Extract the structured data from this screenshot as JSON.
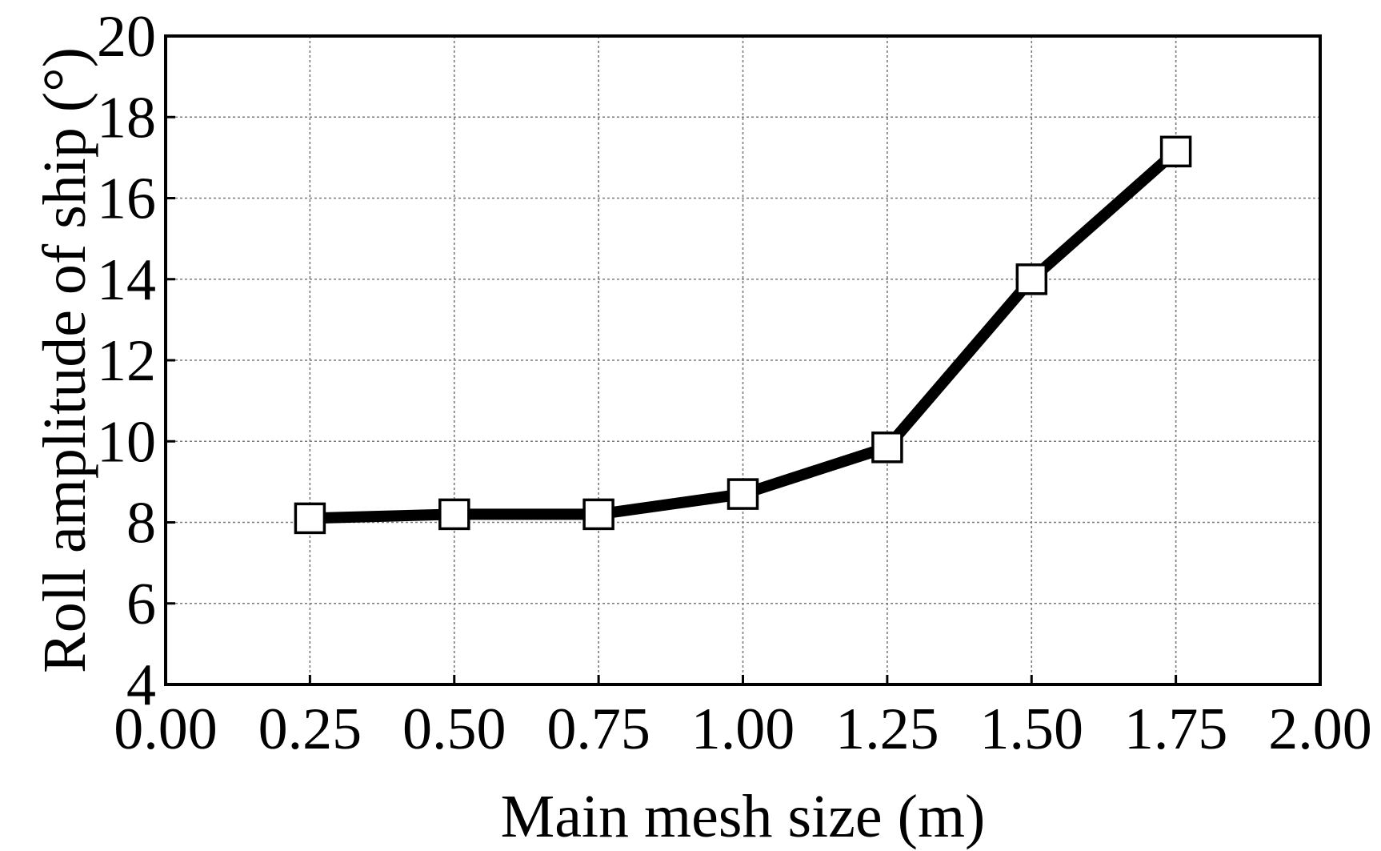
{
  "chart_data": {
    "type": "line",
    "title": "",
    "xlabel": "Main mesh size (m)",
    "ylabel": "Roll amplitude of ship (°)",
    "xlim": [
      0.0,
      2.0
    ],
    "ylim": [
      4,
      20
    ],
    "x_ticks": [
      "0.00",
      "0.25",
      "0.50",
      "0.75",
      "1.00",
      "1.25",
      "1.50",
      "1.75",
      "2.00"
    ],
    "y_ticks": [
      "4",
      "6",
      "8",
      "10",
      "12",
      "14",
      "16",
      "18",
      "20"
    ],
    "grid": true,
    "legend": "none",
    "marker": "open-square",
    "line_color": "#000000",
    "series": [
      {
        "x": [
          0.25,
          0.5,
          0.75,
          1.0,
          1.25,
          1.5,
          1.75
        ],
        "y": [
          8.1,
          8.2,
          8.2,
          8.7,
          9.85,
          14.0,
          17.15
        ]
      }
    ]
  }
}
